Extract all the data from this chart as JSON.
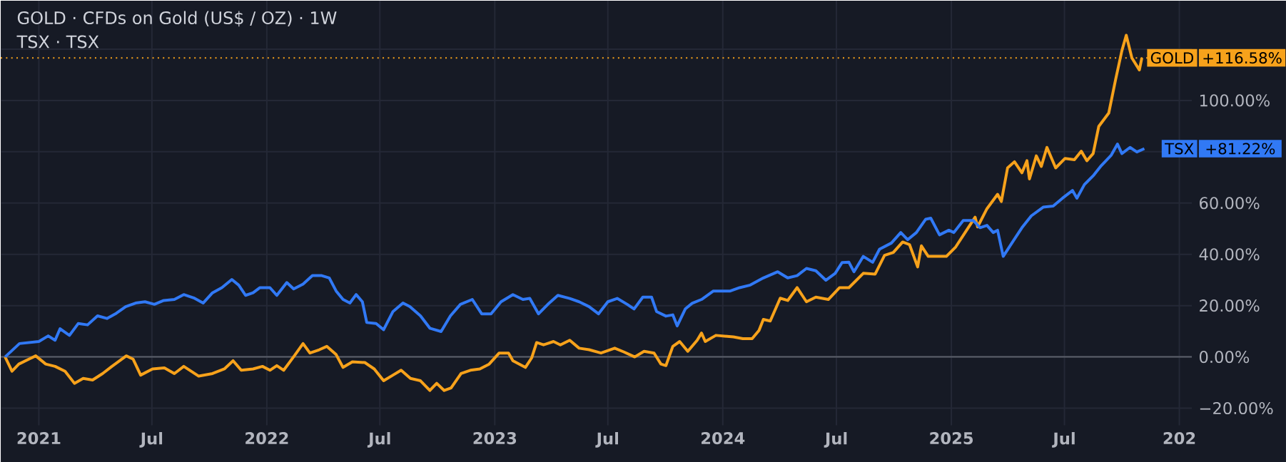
{
  "chart_data": {
    "type": "line",
    "title": "GOLD · CFDs on Gold (US$ / OZ) · 1W",
    "subtitle": "TSX · TSX",
    "xlim": [
      "2020-11-01",
      "2026-01-21"
    ],
    "xticks": [
      {
        "value": "2021-01-01",
        "label": "2021"
      },
      {
        "value": "2021-07-01",
        "label": "Jul"
      },
      {
        "value": "2022-01-01",
        "label": "2022"
      },
      {
        "value": "2022-07-01",
        "label": "Jul"
      },
      {
        "value": "2023-01-01",
        "label": "2023"
      },
      {
        "value": "2023-07-01",
        "label": "Jul"
      },
      {
        "value": "2024-01-01",
        "label": "2024"
      },
      {
        "value": "2024-07-01",
        "label": "Jul"
      },
      {
        "value": "2025-01-01",
        "label": "2025"
      },
      {
        "value": "2025-07-01",
        "label": "Jul"
      },
      {
        "value": "2026-01-01",
        "label": "202"
      }
    ],
    "ylim": [
      -26.7,
      138.9
    ],
    "yticks": [
      {
        "value": -20,
        "label": "−20.00%"
      },
      {
        "value": 0,
        "label": "0.00%"
      },
      {
        "value": 20,
        "label": "20.00%"
      },
      {
        "value": 40,
        "label": "40.00%"
      },
      {
        "value": 60,
        "label": "60.00%"
      },
      {
        "value": 80,
        "label": null
      },
      {
        "value": 100,
        "label": "100.00%"
      },
      {
        "value": 120,
        "label": null
      }
    ],
    "grid": true,
    "legend": false,
    "marker": "none",
    "line_style": "solid",
    "ref_lines": [
      {
        "axis": "y",
        "value": 0,
        "color": "#5d606b",
        "line_style": "solid"
      },
      {
        "axis": "y",
        "value": 116.58,
        "color": "#f7a21b",
        "line_style": "dotted"
      }
    ],
    "annotations": [
      "+116.58%",
      "+81.22%"
    ],
    "series": [
      {
        "name": "GOLD",
        "color": "#f7a21b",
        "x": [
          "2020-11-08",
          "2020-11-19",
          "2020-11-30",
          "2020-12-16",
          "2020-12-27",
          "2021-01-12",
          "2021-01-27",
          "2021-02-12",
          "2021-02-27",
          "2021-03-13",
          "2021-03-28",
          "2021-04-13",
          "2021-04-28",
          "2021-05-21",
          "2021-06-01",
          "2021-06-13",
          "2021-07-02",
          "2021-07-21",
          "2021-08-06",
          "2021-08-21",
          "2021-09-14",
          "2021-10-06",
          "2021-10-25",
          "2021-11-08",
          "2021-11-21",
          "2021-12-10",
          "2021-12-25",
          "2022-01-06",
          "2022-01-17",
          "2022-01-28",
          "2022-02-14",
          "2022-02-28",
          "2022-03-11",
          "2022-03-26",
          "2022-04-07",
          "2022-04-22",
          "2022-05-03",
          "2022-05-18",
          "2022-06-07",
          "2022-06-22",
          "2022-07-07",
          "2022-07-22",
          "2022-08-04",
          "2022-08-19",
          "2022-09-04",
          "2022-09-19",
          "2022-09-30",
          "2022-10-12",
          "2022-10-23",
          "2022-11-08",
          "2022-11-23",
          "2022-12-08",
          "2022-12-23",
          "2023-01-08",
          "2023-01-23",
          "2023-01-30",
          "2023-02-19",
          "2023-03-01",
          "2023-03-09",
          "2023-03-20",
          "2023-04-05",
          "2023-04-16",
          "2023-05-01",
          "2023-05-16",
          "2023-06-01",
          "2023-06-20",
          "2023-07-12",
          "2023-07-27",
          "2023-08-13",
          "2023-08-28",
          "2023-09-13",
          "2023-09-24",
          "2023-10-02",
          "2023-10-13",
          "2023-10-24",
          "2023-11-06",
          "2023-11-21",
          "2023-11-28",
          "2023-12-04",
          "2023-12-21",
          "2024-01-18",
          "2024-02-02",
          "2024-02-17",
          "2024-02-28",
          "2024-03-06",
          "2024-03-17",
          "2024-04-02",
          "2024-04-14",
          "2024-04-29",
          "2024-05-14",
          "2024-05-29",
          "2024-06-18",
          "2024-07-06",
          "2024-07-21",
          "2024-08-02",
          "2024-08-13",
          "2024-09-01",
          "2024-09-16",
          "2024-09-30",
          "2024-10-15",
          "2024-10-26",
          "2024-11-08",
          "2024-11-14",
          "2024-11-25",
          "2024-12-13",
          "2024-12-24",
          "2025-01-08",
          "2025-01-23",
          "2025-02-08",
          "2025-02-12",
          "2025-02-27",
          "2025-03-16",
          "2025-03-22",
          "2025-04-01",
          "2025-04-12",
          "2025-04-24",
          "2025-05-02",
          "2025-05-06",
          "2025-05-17",
          "2025-05-25",
          "2025-06-03",
          "2025-06-17",
          "2025-07-02",
          "2025-07-17",
          "2025-07-28",
          "2025-08-06",
          "2025-08-16",
          "2025-08-25",
          "2025-09-10",
          "2025-09-21",
          "2025-10-01",
          "2025-10-08",
          "2025-10-17",
          "2025-10-29",
          "2025-11-02"
        ],
        "values": [
          0,
          -5.6,
          -2.8,
          -0.9,
          0.4,
          -2.8,
          -3.7,
          -5.6,
          -10.3,
          -8.4,
          -9,
          -6.5,
          -3.7,
          0.4,
          -0.9,
          -7.1,
          -4.7,
          -4.3,
          -6.5,
          -3.7,
          -7.5,
          -6.5,
          -4.7,
          -1.5,
          -5.2,
          -4.7,
          -3.7,
          -5.2,
          -3.4,
          -5.2,
          0.4,
          5.2,
          1.5,
          2.8,
          4.1,
          0.9,
          -4.1,
          -1.9,
          -2.2,
          -4.7,
          -9.3,
          -7.1,
          -5.2,
          -8.4,
          -9.3,
          -13.1,
          -10.3,
          -13.1,
          -12.1,
          -6.5,
          -5.2,
          -4.7,
          -2.8,
          1.5,
          1.5,
          -1.5,
          -4.1,
          -0.4,
          5.6,
          4.7,
          6,
          4.7,
          6.5,
          3.4,
          2.8,
          1.5,
          3.4,
          1.9,
          0,
          2.2,
          1.5,
          -2.8,
          -3.4,
          4.1,
          6,
          2.2,
          6.5,
          9.3,
          6,
          8.4,
          7.8,
          7.1,
          7.1,
          10.3,
          14.6,
          14,
          22.9,
          22,
          27,
          21.5,
          23.3,
          22.4,
          27,
          27,
          29.9,
          32.6,
          32.3,
          39.6,
          40.7,
          44.8,
          43.8,
          35.1,
          43.3,
          39.2,
          39.2,
          39.2,
          42.9,
          48.5,
          54.5,
          50.7,
          57.8,
          63.4,
          60.6,
          73.7,
          76.1,
          71.8,
          76.5,
          69.4,
          78.4,
          74.3,
          81.7,
          73.7,
          77.4,
          76.9,
          80.2,
          76.5,
          79.3,
          89.9,
          95.1,
          108.2,
          119.4,
          125.4,
          116.6,
          111.9,
          116.6
        ]
      },
      {
        "name": "TSX",
        "color": "#3179f5",
        "x": [
          "2020-11-08",
          "2020-12-01",
          "2021-01-01",
          "2021-01-16",
          "2021-01-27",
          "2021-02-04",
          "2021-02-19",
          "2021-03-05",
          "2021-03-20",
          "2021-04-05",
          "2021-04-20",
          "2021-05-05",
          "2021-05-20",
          "2021-06-05",
          "2021-06-20",
          "2021-07-05",
          "2021-07-20",
          "2021-08-06",
          "2021-08-21",
          "2021-09-06",
          "2021-09-21",
          "2021-10-06",
          "2021-10-21",
          "2021-11-06",
          "2021-11-17",
          "2021-11-28",
          "2021-12-10",
          "2021-12-21",
          "2022-01-06",
          "2022-01-17",
          "2022-02-02",
          "2022-02-13",
          "2022-02-28",
          "2022-03-15",
          "2022-03-30",
          "2022-04-11",
          "2022-04-22",
          "2022-05-03",
          "2022-05-14",
          "2022-05-24",
          "2022-06-03",
          "2022-06-10",
          "2022-06-25",
          "2022-07-07",
          "2022-07-22",
          "2022-08-07",
          "2022-08-18",
          "2022-09-04",
          "2022-09-19",
          "2022-10-07",
          "2022-10-22",
          "2022-11-07",
          "2022-11-26",
          "2022-12-11",
          "2022-12-26",
          "2023-01-11",
          "2023-01-30",
          "2023-02-15",
          "2023-02-26",
          "2023-03-12",
          "2023-03-27",
          "2023-04-12",
          "2023-05-01",
          "2023-05-16",
          "2023-06-01",
          "2023-06-16",
          "2023-07-01",
          "2023-07-16",
          "2023-08-01",
          "2023-08-12",
          "2023-08-26",
          "2023-09-09",
          "2023-09-17",
          "2023-10-02",
          "2023-10-13",
          "2023-10-20",
          "2023-11-02",
          "2023-11-13",
          "2023-11-28",
          "2023-12-17",
          "2024-01-13",
          "2024-01-28",
          "2024-02-14",
          "2024-03-06",
          "2024-03-29",
          "2024-04-14",
          "2024-04-29",
          "2024-05-14",
          "2024-05-29",
          "2024-06-14",
          "2024-06-29",
          "2024-07-10",
          "2024-07-21",
          "2024-07-29",
          "2024-08-13",
          "2024-08-28",
          "2024-09-08",
          "2024-09-27",
          "2024-10-12",
          "2024-10-23",
          "2024-11-06",
          "2024-11-21",
          "2024-11-29",
          "2024-12-13",
          "2024-12-28",
          "2025-01-05",
          "2025-01-20",
          "2025-02-05",
          "2025-02-16",
          "2025-02-27",
          "2025-03-09",
          "2025-03-16",
          "2025-03-25",
          "2025-04-09",
          "2025-04-24",
          "2025-05-09",
          "2025-05-28",
          "2025-06-13",
          "2025-06-28",
          "2025-07-14",
          "2025-07-21",
          "2025-08-02",
          "2025-08-17",
          "2025-08-29",
          "2025-09-14",
          "2025-09-24",
          "2025-10-01",
          "2025-10-14",
          "2025-10-25",
          "2025-11-06"
        ],
        "values": [
          0,
          5.2,
          6,
          8.2,
          6.5,
          11,
          8.4,
          13,
          12.5,
          16,
          15,
          17,
          19.6,
          21,
          21.5,
          20.5,
          22,
          22.4,
          24.3,
          23,
          21,
          25,
          27,
          30.2,
          28,
          24,
          25,
          27,
          27,
          24,
          29,
          26.5,
          28.4,
          31.7,
          31.7,
          30.8,
          25.7,
          22.4,
          21,
          24.3,
          21.5,
          13.4,
          13,
          10.6,
          17.7,
          21,
          19.6,
          16,
          11.2,
          9.9,
          16,
          20.5,
          22.4,
          16.8,
          16.8,
          21.5,
          24.3,
          22.4,
          22.8,
          16.8,
          20.5,
          24,
          22.8,
          21.5,
          19.6,
          16.8,
          21.5,
          22.8,
          20.5,
          18.7,
          23.3,
          23.3,
          17.7,
          15.9,
          16.4,
          12.1,
          18.7,
          20.9,
          22.4,
          25.7,
          25.7,
          27,
          28,
          30.8,
          33.2,
          30.8,
          31.7,
          34.5,
          33.6,
          29.9,
          32.6,
          36.8,
          36.9,
          33.2,
          39.2,
          36.9,
          42,
          44.4,
          48.5,
          45.7,
          48.5,
          53.7,
          54.1,
          47.6,
          49.4,
          48.5,
          53.2,
          53.2,
          50.4,
          51.3,
          48.5,
          49.4,
          39.2,
          44.8,
          50.4,
          55,
          58.4,
          58.8,
          61.9,
          64.9,
          61.9,
          67.2,
          70.9,
          74.6,
          78.7,
          83,
          79.3,
          81.7,
          79.9,
          81.2
        ]
      }
    ]
  }
}
